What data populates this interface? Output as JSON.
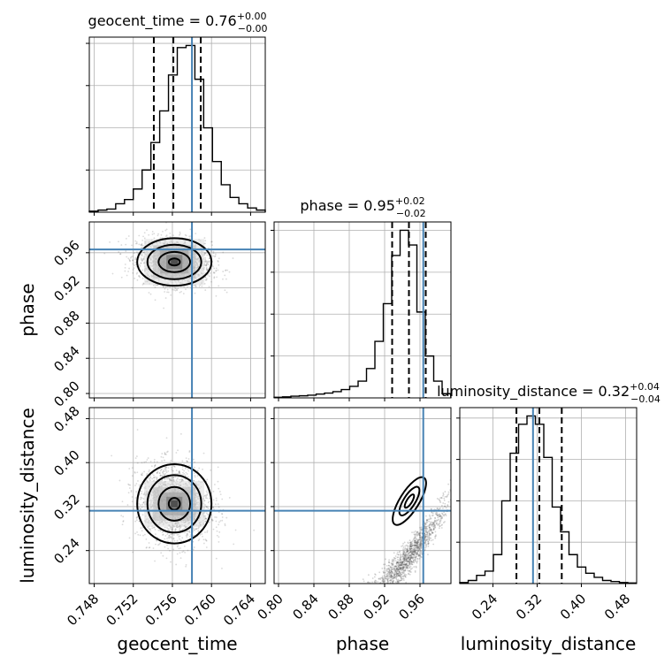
{
  "chart_data": {
    "type": "corner",
    "parameters": [
      {
        "name": "geocent_time",
        "xlabel": "geocent_time",
        "title": {
          "base": "geocent_time = 0.76",
          "plus": "+0.00",
          "minus": "−0.00"
        },
        "ticks": [
          "0.748",
          "0.752",
          "0.756",
          "0.760",
          "0.764"
        ],
        "tick_values": [
          0.748,
          0.752,
          0.756,
          0.76,
          0.764
        ],
        "range": [
          0.7475,
          0.7655
        ],
        "truth": 0.758,
        "quantiles": [
          0.7541,
          0.7561,
          0.7589
        ],
        "hist_edges_start": 0.7475,
        "hist_bin_width": 0.0009,
        "hist_counts": [
          0.5,
          1,
          1.5,
          4,
          6,
          11,
          20,
          33,
          48,
          65,
          78,
          79,
          63,
          40,
          24,
          13,
          7,
          4,
          2,
          1,
          0.5
        ]
      },
      {
        "name": "phase",
        "xlabel": "phase",
        "ylabel": "phase",
        "title": {
          "base": "phase = 0.95",
          "plus": "+0.02",
          "minus": "−0.02"
        },
        "ticks": [
          "0.80",
          "0.84",
          "0.88",
          "0.92",
          "0.96"
        ],
        "tick_values": [
          0.8,
          0.84,
          0.88,
          0.92,
          0.96
        ],
        "range": [
          0.795,
          0.995
        ],
        "truth": 0.9637,
        "quantiles": [
          0.9285,
          0.9475,
          0.9665
        ],
        "hist_edges_start": 0.795,
        "hist_bin_width": 0.0095,
        "hist_counts": [
          0.3,
          0.5,
          0.8,
          1,
          1.3,
          1.8,
          2.3,
          3,
          4,
          5.5,
          8,
          14,
          27,
          45,
          68,
          80,
          73,
          41,
          20,
          8,
          2
        ]
      },
      {
        "name": "luminosity_distance",
        "xlabel": "luminosity_distance",
        "ylabel": "luminosity_distance",
        "title": {
          "base": "luminosity_distance = 0.32",
          "plus": "+0.04",
          "minus": "−0.04"
        },
        "ticks": [
          "0.24",
          "0.32",
          "0.40",
          "0.48"
        ],
        "tick_values": [
          0.24,
          0.32,
          0.4,
          0.48
        ],
        "range": [
          0.18,
          0.5
        ],
        "truth": 0.3125,
        "quantiles": [
          0.2825,
          0.324,
          0.3645
        ],
        "hist_edges_start": 0.18,
        "hist_bin_width": 0.0152,
        "hist_counts": [
          0.5,
          1.5,
          4,
          6,
          14,
          40,
          63,
          77,
          81,
          77,
          61,
          37,
          25,
          14,
          8,
          5,
          3,
          1.5,
          1,
          0.5,
          0.3
        ]
      }
    ],
    "scatter_2d": [
      {
        "x": "geocent_time",
        "y": "phase",
        "center": [
          0.7562,
          0.9495
        ],
        "sigma": [
          0.0019,
          0.0135
        ],
        "rho": -0.15
      },
      {
        "x": "geocent_time",
        "y": "luminosity_distance",
        "center": [
          0.7562,
          0.325
        ],
        "sigma": [
          0.0019,
          0.036
        ],
        "rho": -0.1
      },
      {
        "x": "phase",
        "y": "luminosity_distance",
        "relation": "curved ridge",
        "center": [
          0.948,
          0.33
        ]
      }
    ],
    "grid": true,
    "truth_color": "#4682b4"
  }
}
